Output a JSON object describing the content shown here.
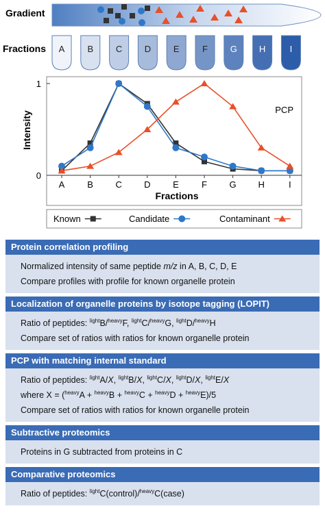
{
  "gradient": {
    "label": "Gradient"
  },
  "fractions": {
    "label": "Fractions",
    "tubes": [
      "A",
      "B",
      "C",
      "D",
      "E",
      "F",
      "G",
      "H",
      "I"
    ]
  },
  "chart_data": {
    "type": "line",
    "annotation": "PCP",
    "xlabel": "Fractions",
    "ylabel": "Intensity",
    "categories": [
      "A",
      "B",
      "C",
      "D",
      "E",
      "F",
      "G",
      "H",
      "I"
    ],
    "ylim": [
      0,
      1
    ],
    "yticks": [
      0,
      1
    ],
    "series": [
      {
        "name": "Known",
        "color": "#333333",
        "marker": "square",
        "values": [
          0.05,
          0.35,
          1.0,
          0.78,
          0.35,
          0.15,
          0.07,
          0.05,
          0.05
        ]
      },
      {
        "name": "Candidate",
        "color": "#2f78c8",
        "marker": "circle",
        "values": [
          0.1,
          0.3,
          1.0,
          0.75,
          0.3,
          0.2,
          0.1,
          0.05,
          0.05
        ]
      },
      {
        "name": "Contaminant",
        "color": "#e8502a",
        "marker": "triangle",
        "values": [
          0.05,
          0.1,
          0.25,
          0.5,
          0.8,
          1.0,
          0.75,
          0.3,
          0.1
        ]
      }
    ]
  },
  "sections": [
    {
      "title": "Protein correlation profiling",
      "lines": [
        [
          {
            "text": "Normalized intensity of same peptide "
          },
          {
            "text": "m/z",
            "style": "italic"
          },
          {
            "text": " in A, B, C, D, E"
          }
        ],
        [
          {
            "text": "Compare profiles with profile for known organelle protein"
          }
        ]
      ]
    },
    {
      "title": "Localization of organelle proteins by isotope tagging (LOPIT)",
      "lines": [
        [
          {
            "text": "Ratio of peptides: "
          },
          {
            "text": "light",
            "style": "sup"
          },
          {
            "text": "B/"
          },
          {
            "text": "heavy",
            "style": "sup"
          },
          {
            "text": "F, "
          },
          {
            "text": "light",
            "style": "sup"
          },
          {
            "text": "C/"
          },
          {
            "text": "heavy",
            "style": "sup"
          },
          {
            "text": "G, "
          },
          {
            "text": "light",
            "style": "sup"
          },
          {
            "text": "D/"
          },
          {
            "text": "heavy",
            "style": "sup"
          },
          {
            "text": "H"
          }
        ],
        [
          {
            "text": "Compare set of ratios with ratios for known organelle protein"
          }
        ]
      ]
    },
    {
      "title": "PCP with matching internal standard",
      "lines": [
        [
          {
            "text": "Ratio of peptides: "
          },
          {
            "text": "light",
            "style": "sup"
          },
          {
            "text": "A/"
          },
          {
            "text": "X",
            "style": "italic"
          },
          {
            "text": ", "
          },
          {
            "text": "light",
            "style": "sup"
          },
          {
            "text": "B/"
          },
          {
            "text": "X",
            "style": "italic"
          },
          {
            "text": ", "
          },
          {
            "text": "light",
            "style": "sup"
          },
          {
            "text": "C/"
          },
          {
            "text": "X",
            "style": "italic"
          },
          {
            "text": ", "
          },
          {
            "text": "light",
            "style": "sup"
          },
          {
            "text": "D/"
          },
          {
            "text": "X",
            "style": "italic"
          },
          {
            "text": ", "
          },
          {
            "text": "light",
            "style": "sup"
          },
          {
            "text": "E/"
          },
          {
            "text": "X",
            "style": "italic"
          }
        ],
        [
          {
            "text": "where X = ("
          },
          {
            "text": "heavy",
            "style": "sup"
          },
          {
            "text": "A + "
          },
          {
            "text": "heavy",
            "style": "sup"
          },
          {
            "text": "B + "
          },
          {
            "text": "heavy",
            "style": "sup"
          },
          {
            "text": "C + "
          },
          {
            "text": "heavy",
            "style": "sup"
          },
          {
            "text": "D + "
          },
          {
            "text": "heavy",
            "style": "sup"
          },
          {
            "text": "E)/5"
          }
        ],
        [
          {
            "text": "Compare set of ratios with ratios for known organelle protein"
          }
        ]
      ]
    },
    {
      "title": "Subtractive proteomics",
      "lines": [
        [
          {
            "text": "Proteins in G subtracted from proteins in C"
          }
        ]
      ]
    },
    {
      "title": "Comparative proteomics",
      "lines": [
        [
          {
            "text": "Ratio of peptides: "
          },
          {
            "text": "light",
            "style": "sup"
          },
          {
            "text": "C(control)/"
          },
          {
            "text": "heavy",
            "style": "sup"
          },
          {
            "text": "C(case)"
          }
        ]
      ]
    }
  ]
}
